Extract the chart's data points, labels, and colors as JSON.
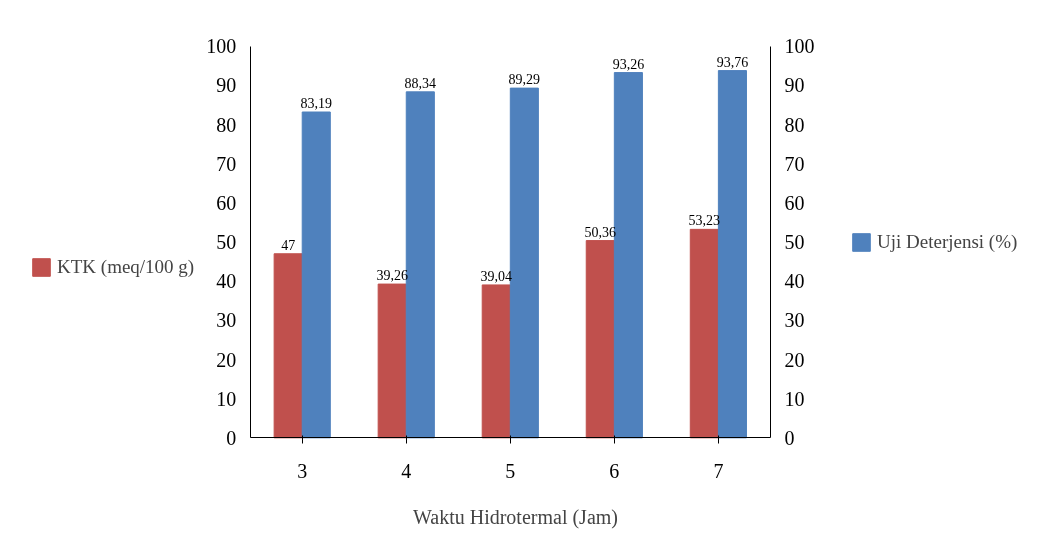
{
  "chart_data": {
    "type": "bar",
    "xlabel": "Waktu Hidrotermal (Jam)",
    "categories": [
      "3",
      "4",
      "5",
      "6",
      "7"
    ],
    "series": [
      {
        "name": "KTK (meq/100 g)",
        "color": "#c0504d",
        "values": [
          47,
          39.26,
          39.04,
          50.36,
          53.23
        ],
        "value_labels": [
          "47",
          "39,26",
          "39,04",
          "50,36",
          "53,23"
        ]
      },
      {
        "name": "Uji Deterjensi (%)",
        "color": "#4f81bd",
        "axis": "y2",
        "values": [
          83.19,
          88.34,
          89.29,
          93.26,
          93.76
        ],
        "value_labels": [
          "83,19",
          "88,34",
          "89,29",
          "93,26",
          "93,76"
        ]
      }
    ],
    "ylim": [
      0,
      100
    ],
    "yticks": [
      0,
      10,
      20,
      30,
      40,
      50,
      60,
      70,
      80,
      90,
      100
    ],
    "y2lim": [
      0,
      100
    ],
    "y2ticks": [
      0,
      10,
      20,
      30,
      40,
      50,
      60,
      70,
      80,
      90,
      100
    ],
    "grid": false,
    "legend": "left"
  }
}
